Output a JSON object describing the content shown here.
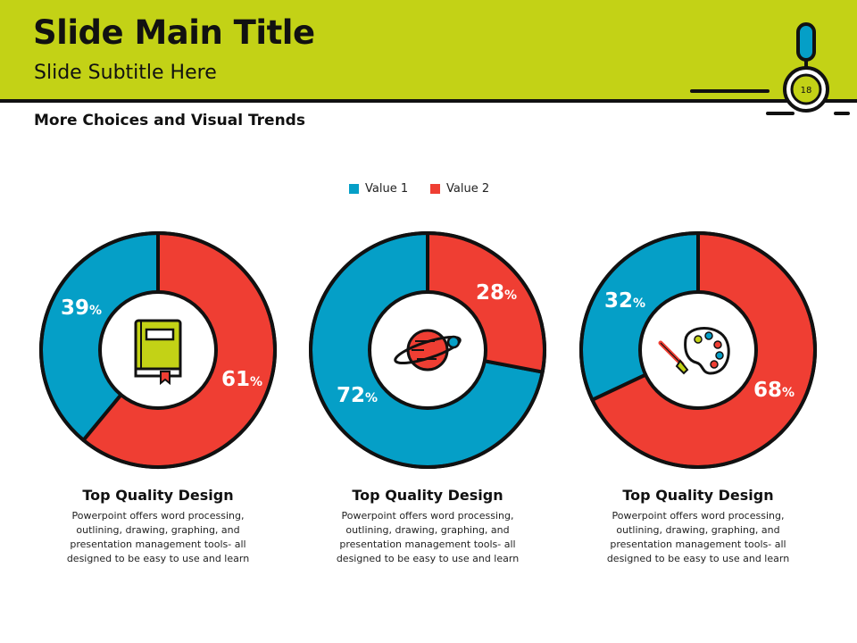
{
  "header": {
    "title": "Slide Main Title",
    "subtitle": "Slide Subtitle Here",
    "page_number": "18"
  },
  "section_heading": "More Choices and Visual Trends",
  "colors": {
    "header_bg": "#c3d216",
    "value1": "#059fc7",
    "value2": "#ef3e33",
    "outline": "#111111"
  },
  "chart_data": [
    {
      "type": "pie",
      "donut": true,
      "series": [
        {
          "name": "Value 1",
          "value": 39
        },
        {
          "name": "Value 2",
          "value": 61
        }
      ],
      "labels": [
        "39",
        "61"
      ],
      "legend": [
        "Value 1",
        "Value 2"
      ],
      "legend_position": "top",
      "center_icon": "book-icon"
    },
    {
      "type": "pie",
      "donut": true,
      "series": [
        {
          "name": "Value 1",
          "value": 72
        },
        {
          "name": "Value 2",
          "value": 28
        }
      ],
      "labels": [
        "72",
        "28"
      ],
      "center_icon": "planet-icon"
    },
    {
      "type": "pie",
      "donut": true,
      "series": [
        {
          "name": "Value 1",
          "value": 32
        },
        {
          "name": "Value 2",
          "value": 68
        }
      ],
      "labels": [
        "32",
        "68"
      ],
      "center_icon": "palette-icon"
    }
  ],
  "legend": [
    "Value 1",
    "Value 2"
  ],
  "percent_sign": "%",
  "cards": [
    {
      "title": "Top Quality Design",
      "body": "Powerpoint offers word processing, outlining, drawing, graphing, and presentation management tools- all designed to be easy to use and learn"
    },
    {
      "title": "Top Quality Design",
      "body": "Powerpoint offers word processing, outlining, drawing, graphing, and presentation management tools- all designed to be easy to use and learn"
    },
    {
      "title": "Top Quality Design",
      "body": "Powerpoint offers word processing, outlining, drawing, graphing, and presentation management tools- all designed to be easy to use and learn"
    }
  ]
}
